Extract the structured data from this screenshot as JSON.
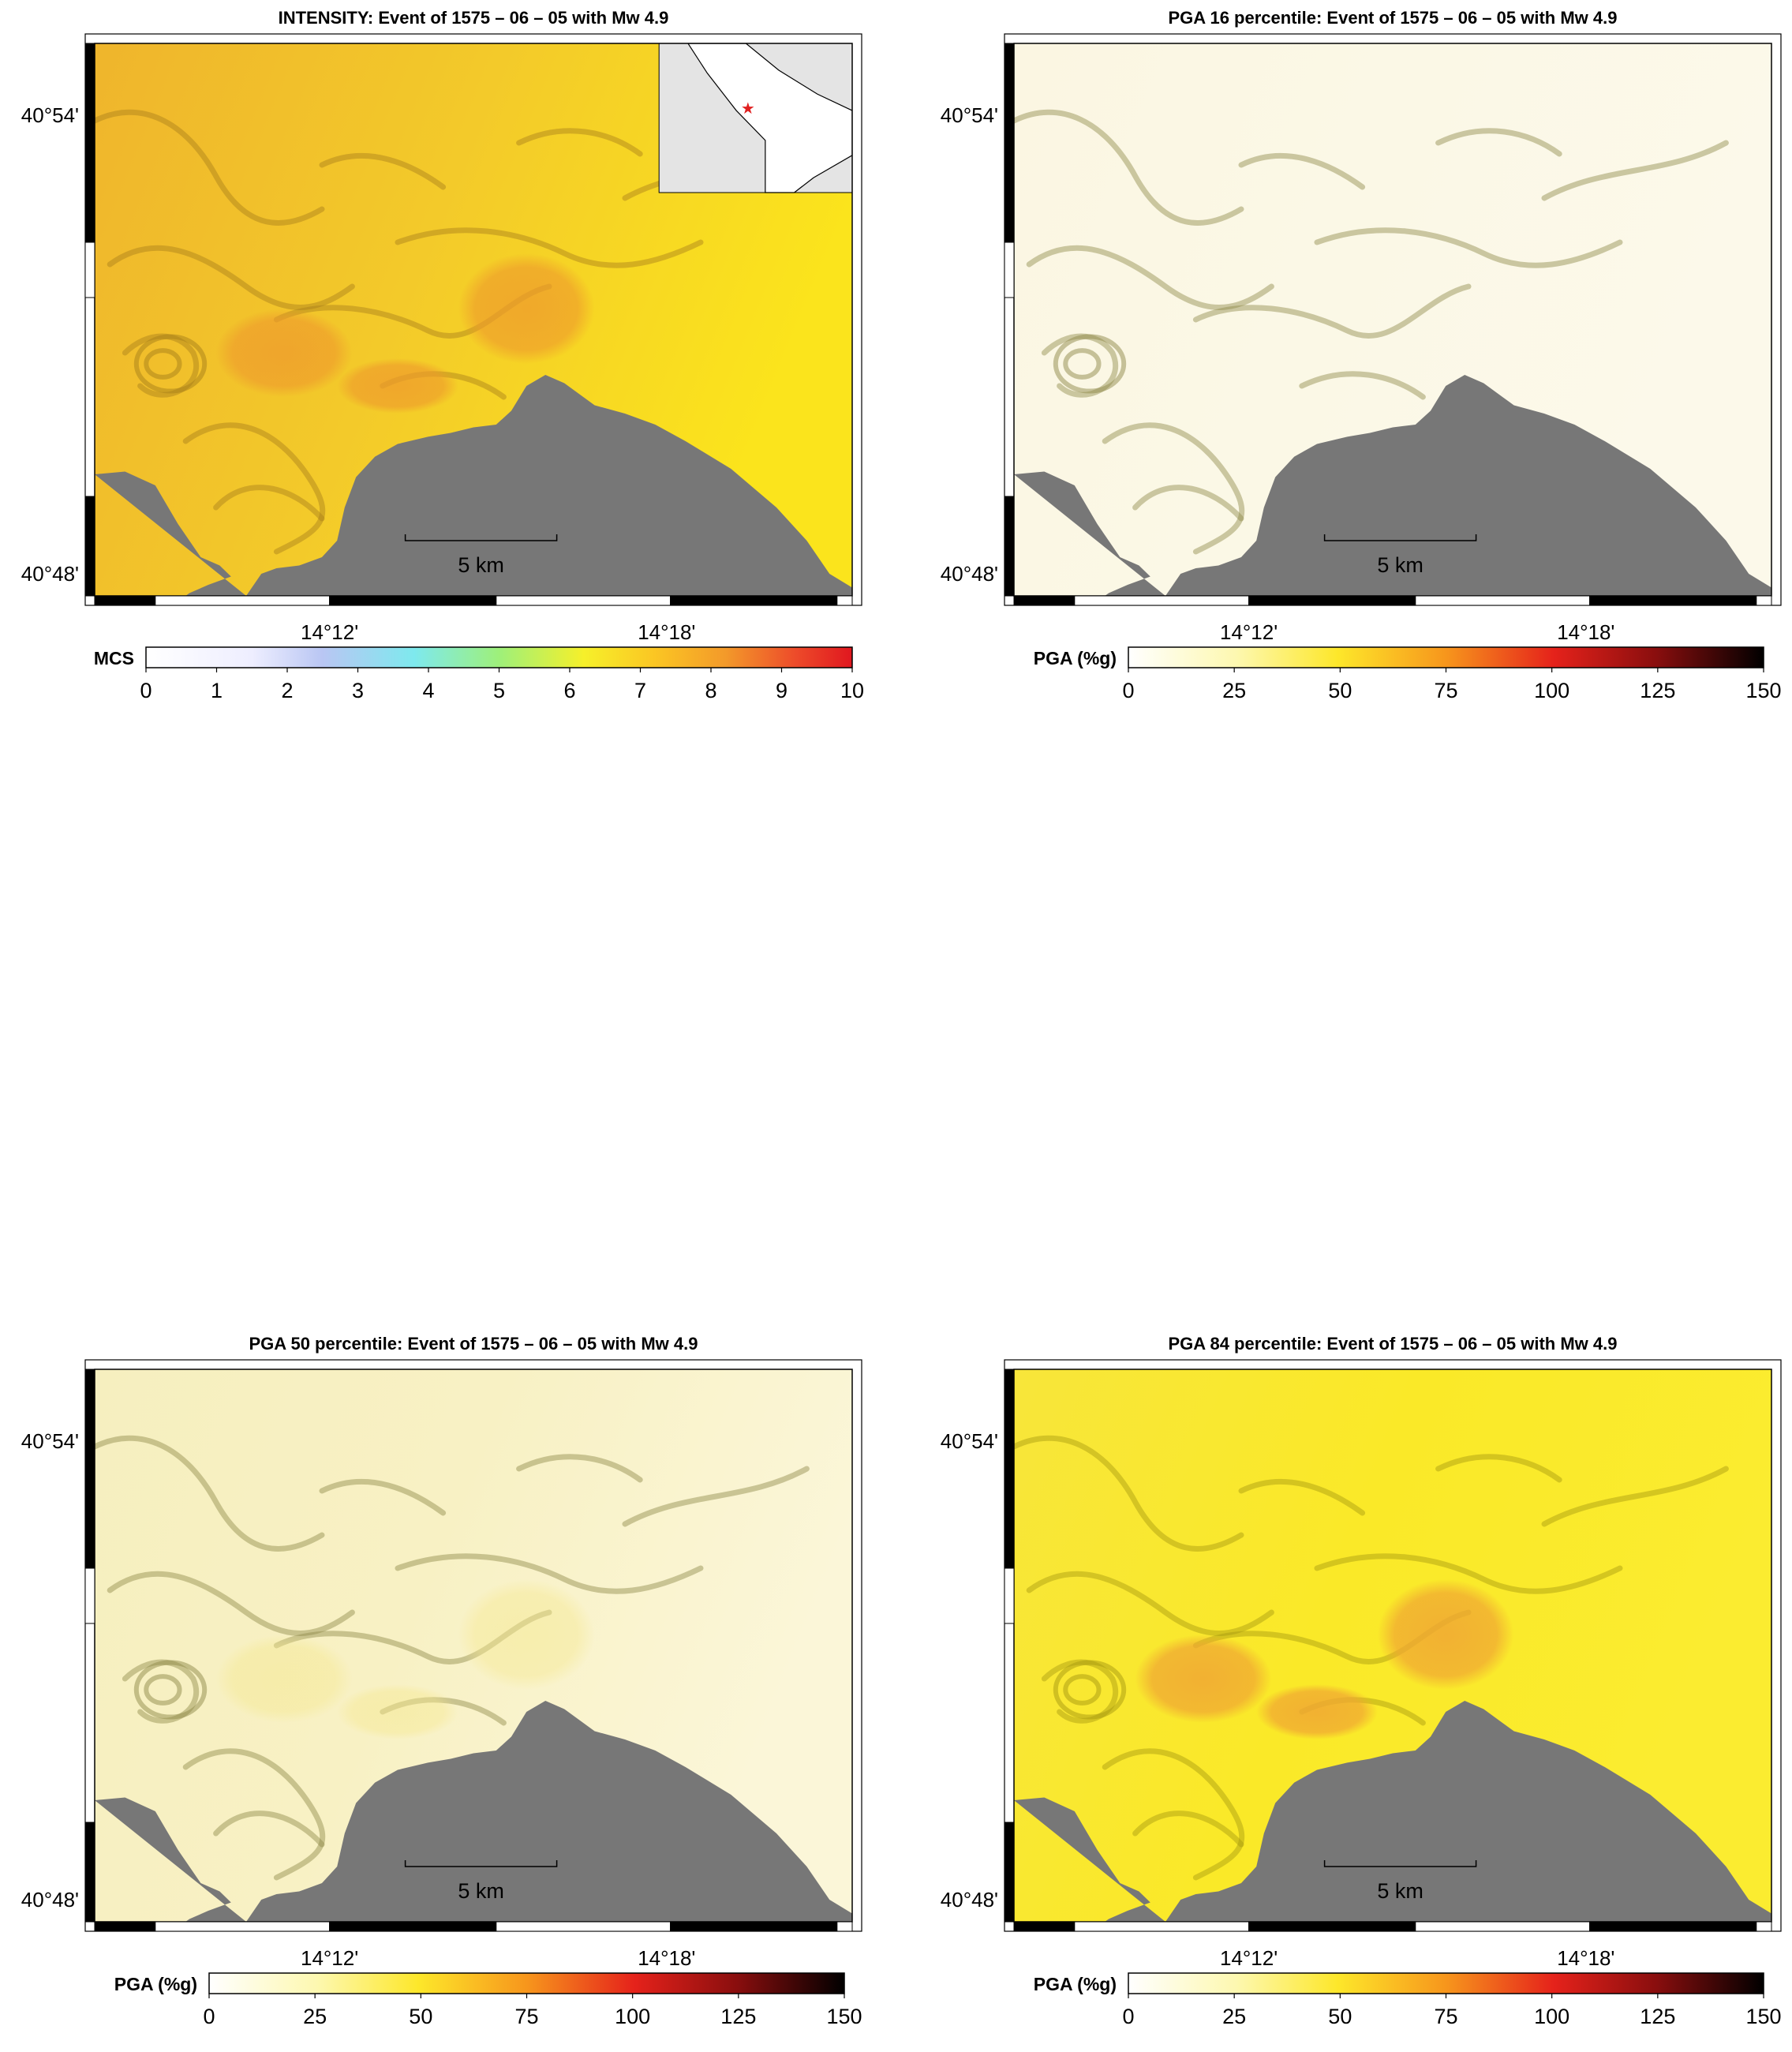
{
  "panels": [
    {
      "title": "INTENSITY: Event of 1575 – 06 – 05 with Mw 4.9",
      "lat_labels": [
        "40°54'",
        "40°48'"
      ],
      "lon_labels": [
        "14°12'",
        "14°18'"
      ],
      "scale_bar_label": "5 km",
      "colorbar_label": "MCS",
      "colorbar_ticks": [
        "0",
        "1",
        "2",
        "3",
        "4",
        "5",
        "6",
        "7",
        "8",
        "9",
        "10"
      ],
      "has_inset": true,
      "palette": "intensity",
      "shaking_level": "high"
    },
    {
      "title": "PGA 16 percentile: Event of 1575 – 06 – 05 with Mw 4.9",
      "lat_labels": [
        "40°54'",
        "40°48'"
      ],
      "lon_labels": [
        "14°12'",
        "14°18'"
      ],
      "scale_bar_label": "5 km",
      "colorbar_label": "PGA (%g)",
      "colorbar_ticks": [
        "0",
        "25",
        "50",
        "75",
        "100",
        "125",
        "150"
      ],
      "has_inset": false,
      "palette": "pga",
      "shaking_level": "low"
    },
    {
      "title": "PGA 50 percentile: Event of 1575 – 06 – 05 with Mw 4.9",
      "lat_labels": [
        "40°54'",
        "40°48'"
      ],
      "lon_labels": [
        "14°12'",
        "14°18'"
      ],
      "scale_bar_label": "5 km",
      "colorbar_label": "PGA (%g)",
      "colorbar_ticks": [
        "0",
        "25",
        "50",
        "75",
        "100",
        "125",
        "150"
      ],
      "has_inset": false,
      "palette": "pga",
      "shaking_level": "medium"
    },
    {
      "title": "PGA 84 percentile: Event of 1575 – 06 – 05 with Mw 4.9",
      "lat_labels": [
        "40°54'",
        "40°48'"
      ],
      "lon_labels": [
        "14°12'",
        "14°18'"
      ],
      "scale_bar_label": "5 km",
      "colorbar_label": "PGA (%g)",
      "colorbar_ticks": [
        "0",
        "25",
        "50",
        "75",
        "100",
        "125",
        "150"
      ],
      "has_inset": false,
      "palette": "pga",
      "shaking_level": "high"
    }
  ],
  "colors": {
    "sea": "#777777",
    "intensity_high": "#f2c42a",
    "intensity_peak": "#ee9b2c",
    "pga_low": "#fbf7df",
    "pga_medium": "#f7f0b2",
    "pga_high": "#fbe91a",
    "pga_peak": "#f0a733"
  }
}
